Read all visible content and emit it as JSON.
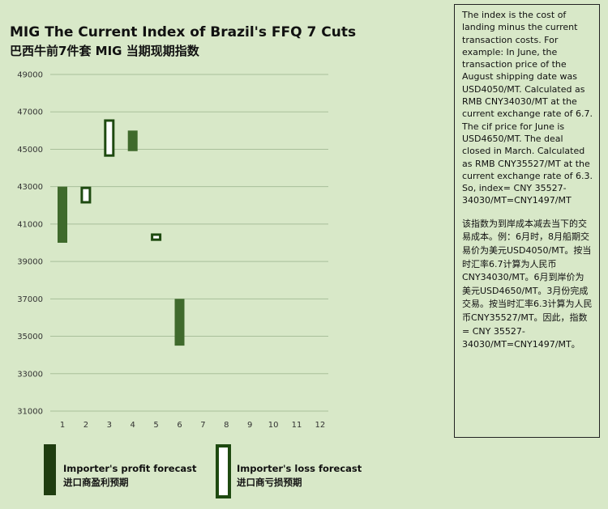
{
  "title_en": "MIG The Current Index of Brazil's FFQ 7 Cuts",
  "title_zh": "巴西牛前7件套 MIG 当期现期指数",
  "colors": {
    "background": "#d8e8c8",
    "profit": "#3f6a2c",
    "loss_border": "#1e4a10",
    "loss_fill": "#ffffff",
    "grid": "#a9bf9a"
  },
  "chart_data": {
    "type": "floating-bar",
    "x": [
      1,
      2,
      3,
      4,
      5,
      6,
      7,
      8,
      9,
      10,
      11,
      12
    ],
    "ylim": [
      31000,
      49000
    ],
    "yticks": [
      31000,
      33000,
      35000,
      37000,
      39000,
      41000,
      43000,
      45000,
      47000,
      49000
    ],
    "grid": "horizontal",
    "bars": [
      {
        "x": 1,
        "low": 40000,
        "high": 43000,
        "kind": "profit"
      },
      {
        "x": 2,
        "low": 42100,
        "high": 43000,
        "kind": "loss"
      },
      {
        "x": 3,
        "low": 44600,
        "high": 46600,
        "kind": "loss"
      },
      {
        "x": 4,
        "low": 44900,
        "high": 46000,
        "kind": "profit"
      },
      {
        "x": 5,
        "low": 40100,
        "high": 40500,
        "kind": "loss"
      },
      {
        "x": 6,
        "low": 34500,
        "high": 37000,
        "kind": "profit"
      }
    ]
  },
  "legend": {
    "profit_en": "Importer's profit forecast",
    "profit_zh": "进口商盈利预期",
    "loss_en": "Importer's loss forecast",
    "loss_zh": "进口商亏损预期"
  },
  "notes": {
    "en": "The index is the cost of landing minus the current transaction costs. For example: In June, the transaction price of the August shipping date was USD4050/MT. Calculated as RMB CNY34030/MT at the current exchange rate of 6.7. The cif price for June is USD4650/MT. The deal closed in March. Calculated as RMB CNY35527/MT at the current exchange rate of 6.3. So, index= CNY 35527-34030/MT=CNY1497/MT",
    "zh": "该指数为到岸成本减去当下的交易成本。例：6月时，8月船期交易价为美元USD4050/MT。按当时汇率6.7计算为人民币CNY34030/MT。6月到岸价为美元USD4650/MT。3月份完成交易。按当时汇率6.3计算为人民币CNY35527/MT。因此，指数= CNY 35527-34030/MT=CNY1497/MT。"
  }
}
